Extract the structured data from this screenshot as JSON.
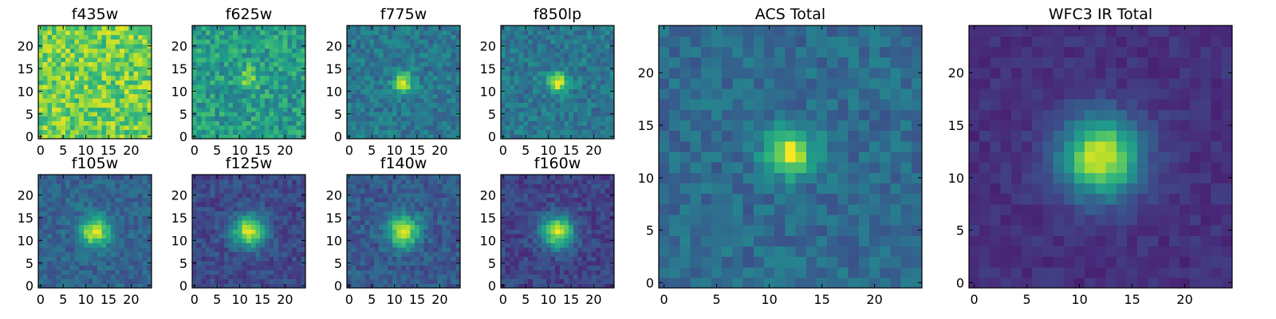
{
  "chart_data": {
    "type": "heatmap",
    "colormap": "viridis",
    "grid": false,
    "panels": [
      {
        "title": "f435w",
        "size": 25,
        "xticks": [
          0,
          5,
          10,
          15,
          20
        ],
        "yticks": [
          0,
          5,
          10,
          15,
          20
        ],
        "peak": [
          12,
          12
        ],
        "sigma": 2.5,
        "amplitude": 0.0,
        "background": 0.78,
        "noise": 0.18
      },
      {
        "title": "f625w",
        "size": 25,
        "xticks": [
          0,
          5,
          10,
          15,
          20
        ],
        "yticks": [
          0,
          5,
          10,
          15,
          20
        ],
        "peak": [
          12,
          13
        ],
        "sigma": 1.5,
        "amplitude": 0.3,
        "background": 0.55,
        "noise": 0.16
      },
      {
        "title": "f775w",
        "size": 25,
        "xticks": [
          0,
          5,
          10,
          15,
          20
        ],
        "yticks": [
          0,
          5,
          10,
          15,
          20
        ],
        "peak": [
          12,
          12
        ],
        "sigma": 1.5,
        "amplitude": 0.55,
        "background": 0.4,
        "noise": 0.12
      },
      {
        "title": "f850lp",
        "size": 25,
        "xticks": [
          0,
          5,
          10,
          15,
          20
        ],
        "yticks": [
          0,
          5,
          10,
          15,
          20
        ],
        "peak": [
          12,
          12
        ],
        "sigma": 1.5,
        "amplitude": 0.55,
        "background": 0.4,
        "noise": 0.12
      },
      {
        "title": "f105w",
        "size": 25,
        "xticks": [
          0,
          5,
          10,
          15,
          20
        ],
        "yticks": [
          0,
          5,
          10,
          15,
          20
        ],
        "peak": [
          12,
          12
        ],
        "sigma": 2.3,
        "amplitude": 0.62,
        "background": 0.32,
        "noise": 0.1
      },
      {
        "title": "f125w",
        "size": 25,
        "xticks": [
          0,
          5,
          10,
          15,
          20
        ],
        "yticks": [
          0,
          5,
          10,
          15,
          20
        ],
        "peak": [
          12,
          12
        ],
        "sigma": 2.5,
        "amplitude": 0.7,
        "background": 0.22,
        "noise": 0.09
      },
      {
        "title": "f140w",
        "size": 25,
        "xticks": [
          0,
          5,
          10,
          15,
          20
        ],
        "yticks": [
          0,
          5,
          10,
          15,
          20
        ],
        "peak": [
          12,
          12
        ],
        "sigma": 2.5,
        "amplitude": 0.62,
        "background": 0.28,
        "noise": 0.1
      },
      {
        "title": "f160w",
        "size": 25,
        "xticks": [
          0,
          5,
          10,
          15,
          20
        ],
        "yticks": [
          0,
          5,
          10,
          15,
          20
        ],
        "peak": [
          12,
          12
        ],
        "sigma": 2.5,
        "amplitude": 0.72,
        "background": 0.2,
        "noise": 0.09
      },
      {
        "title": "ACS Total",
        "size": 25,
        "xticks": [
          0,
          5,
          10,
          15,
          20
        ],
        "yticks": [
          0,
          5,
          10,
          15,
          20
        ],
        "peak": [
          12,
          12.5
        ],
        "sigma": 1.6,
        "amplitude": 0.62,
        "background": 0.35,
        "noise": 0.1
      },
      {
        "title": "WFC3 IR Total",
        "size": 25,
        "xticks": [
          0,
          5,
          10,
          15,
          20
        ],
        "yticks": [
          0,
          5,
          10,
          15,
          20
        ],
        "peak": [
          12,
          12
        ],
        "sigma": 2.6,
        "amplitude": 0.8,
        "background": 0.14,
        "noise": 0.05
      }
    ]
  }
}
